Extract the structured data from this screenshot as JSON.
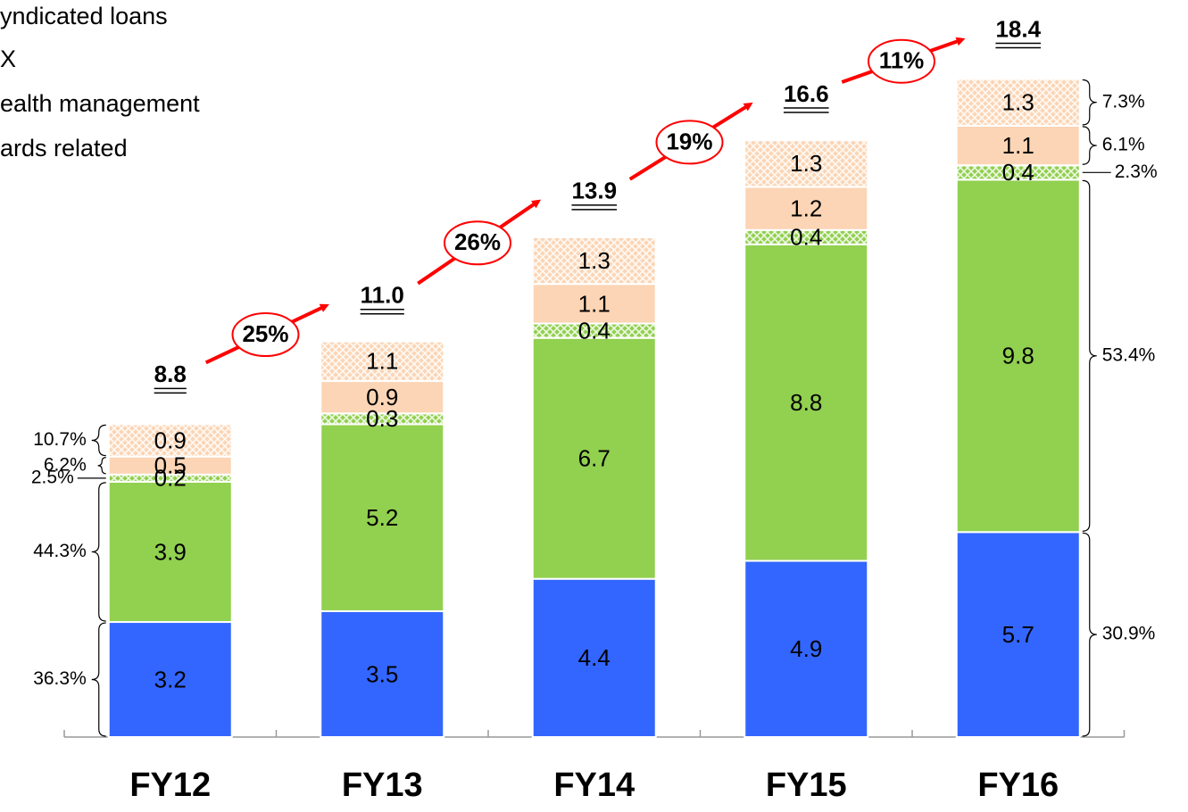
{
  "chart_data": {
    "type": "stacked_bar",
    "categories": [
      "FY12",
      "FY13",
      "FY14",
      "FY15",
      "FY16"
    ],
    "series": [
      {
        "color": "#3366ff",
        "values": [
          3.2,
          3.5,
          4.4,
          4.9,
          5.7
        ]
      },
      {
        "name": "yndicated loans",
        "color": "#92d050",
        "values": [
          3.9,
          5.2,
          6.7,
          8.8,
          9.8
        ]
      },
      {
        "name": "X",
        "color": "#92d050",
        "hatch": true,
        "values": [
          0.2,
          0.3,
          0.4,
          0.4,
          0.4
        ]
      },
      {
        "name": "ealth management",
        "color": "#fbd5b5",
        "values": [
          0.5,
          0.9,
          1.1,
          1.2,
          1.1
        ]
      },
      {
        "name": "ards related",
        "color": "#fbd5b5",
        "hatch": true,
        "values": [
          0.9,
          1.1,
          1.3,
          1.3,
          1.3
        ]
      }
    ],
    "totals": {
      "values": [
        8.8,
        11.0,
        13.9,
        16.6,
        18.4
      ],
      "value_labels": [
        "8.8",
        "11.0",
        "13.9",
        "16.6",
        "18.4"
      ]
    },
    "growth": {
      "values": [
        25,
        26,
        19,
        11
      ],
      "value_labels": [
        "25%",
        "26%",
        "19%",
        "11%"
      ]
    },
    "share_labels": [
      {
        "values": [
          36.3,
          44.3,
          2.5,
          6.2,
          10.7
        ],
        "value_labels": [
          "36.3%",
          "44.3%",
          "2.5%",
          "6.2%",
          "10.7%"
        ]
      },
      {
        "values": [
          30.9,
          53.4,
          2.3,
          6.1,
          7.3
        ],
        "value_labels": [
          "30.9%",
          "53.4%",
          "2.3%",
          "6.1%",
          "7.3%"
        ]
      }
    ],
    "ylim": [
      0,
      20
    ]
  }
}
